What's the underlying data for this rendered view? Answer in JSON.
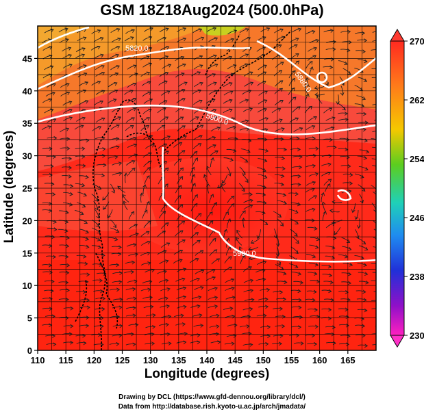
{
  "title": "GSM 18Z18Aug2024 (500.0hPa)",
  "xlabel": "Longitude (degrees)",
  "ylabel": "Latitude  (degrees)",
  "credits": [
    "Drawing by DCL (https://www.gfd-dennou.org/library/dcl/)",
    "Data from http://database.rish.kyoto-u.ac.jp/arch/jmadata/"
  ],
  "map": {
    "lon_range": [
      110,
      170
    ],
    "lat_range": [
      0,
      50
    ],
    "lon_ticks": [
      110,
      115,
      120,
      125,
      130,
      135,
      140,
      145,
      150,
      155,
      160,
      165
    ],
    "lat_ticks": [
      0,
      5,
      10,
      15,
      20,
      25,
      30,
      35,
      40,
      45
    ],
    "grid_spacing_deg": 2.5,
    "field": "temperature (colour) with streamlines",
    "contour_labels": [
      "5820.0",
      "5880.0",
      "5900.0",
      "5900.0"
    ]
  },
  "colorbar": {
    "ticks": [
      270,
      262,
      254,
      246,
      238,
      230
    ],
    "range": [
      230,
      270
    ],
    "colors": [
      "#ff2020",
      "#ff8a1a",
      "#f3d100",
      "#6fcf1f",
      "#1fd0b4",
      "#1f7ff0",
      "#2020d8",
      "#9a10c8",
      "#ff20c0"
    ]
  }
}
